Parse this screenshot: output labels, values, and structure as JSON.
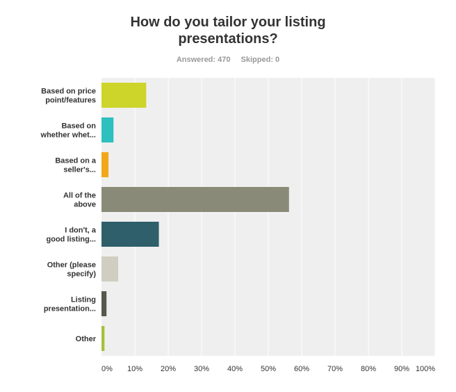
{
  "title_lines": [
    "How do you tailor your listing",
    "presentations?"
  ],
  "stats": {
    "answered": "Answered: 470",
    "skipped": "Skipped: 0"
  },
  "chart_data": {
    "type": "bar",
    "orientation": "horizontal",
    "title": "How do you tailor your listing presentations?",
    "categories": [
      [
        "Based on price",
        "point/features"
      ],
      [
        "Based on",
        "whether whet..."
      ],
      [
        "Based on a",
        "seller's..."
      ],
      [
        "All of the",
        "above"
      ],
      [
        "I don't, a",
        "good listing..."
      ],
      [
        "Other (please",
        "specify)"
      ],
      [
        "Listing",
        "presentation..."
      ],
      [
        "Other"
      ]
    ],
    "values": [
      13.4,
      3.6,
      2.1,
      56.2,
      17.2,
      5.0,
      1.5,
      0.9
    ],
    "colors": [
      "#cdd42a",
      "#2ebfbf",
      "#f2a71b",
      "#8a8a78",
      "#2f5f6a",
      "#cfcec0",
      "#57574a",
      "#a7c03a"
    ],
    "xlim": [
      0,
      100
    ],
    "ticks": [
      "0%",
      "10%",
      "20%",
      "30%",
      "40%",
      "50%",
      "60%",
      "70%",
      "80%",
      "90%",
      "100%"
    ],
    "grid": true,
    "plot_background": "#efefef",
    "grid_color": "#ffffff"
  }
}
